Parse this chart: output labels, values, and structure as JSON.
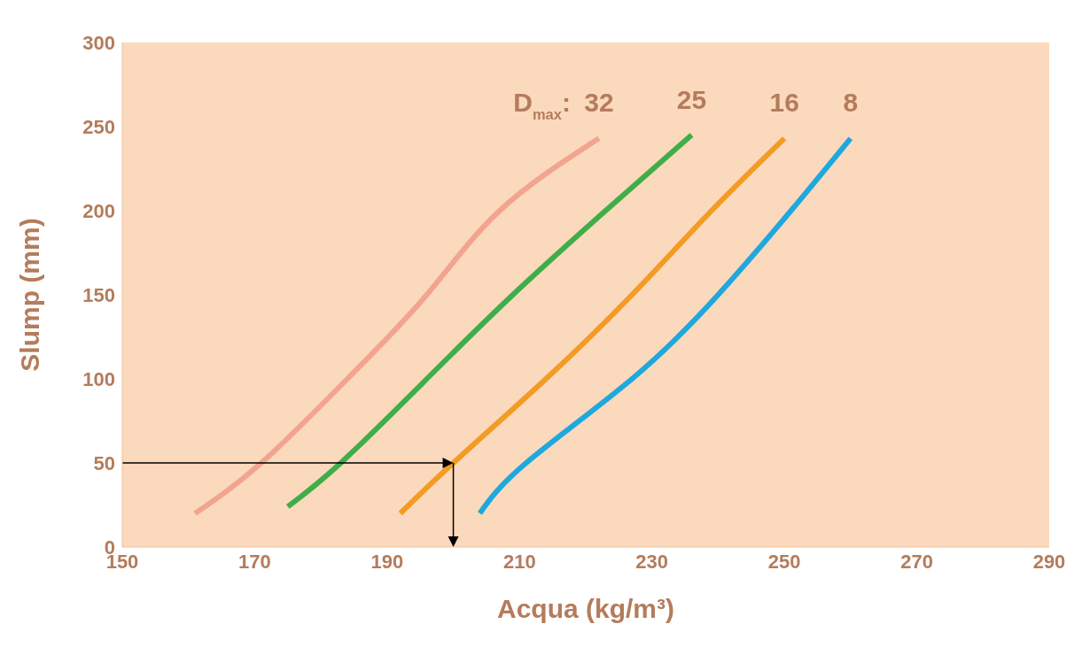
{
  "chart_data": {
    "type": "line",
    "xlabel": "Acqua (kg/m³)",
    "ylabel": "Slump (mm)",
    "xlim": [
      150,
      290
    ],
    "xticks": [
      150,
      170,
      190,
      210,
      230,
      250,
      270,
      290
    ],
    "ylim": [
      0,
      300
    ],
    "yticks": [
      0,
      50,
      100,
      150,
      200,
      250,
      300
    ],
    "grid": false,
    "legend": false,
    "marker": "none",
    "line_style": "solid",
    "annotations": [
      "D$_{max}$:"
    ],
    "ref_lines": [
      {
        "axis": "y",
        "value": 50,
        "color": "#000000"
      },
      {
        "axis": "x",
        "value": 200,
        "color": "#000000"
      }
    ],
    "series": [
      {
        "name": "32",
        "color": "#f2a48e",
        "x": [
          161,
          171,
          184,
          196,
          207,
          222
        ],
        "values": [
          20,
          50,
          100,
          150,
          200,
          243
        ]
      },
      {
        "name": "25",
        "color": "#3fae49",
        "x": [
          175,
          183,
          196,
          209,
          223,
          236
        ],
        "values": [
          24,
          50,
          100,
          150,
          200,
          245
        ]
      },
      {
        "name": "16",
        "color": "#f39b24",
        "x": [
          192,
          200,
          214,
          227,
          239,
          250
        ],
        "values": [
          20,
          50,
          100,
          150,
          200,
          243
        ]
      },
      {
        "name": "8",
        "color": "#1ea8de",
        "x": [
          204,
          211,
          227,
          240,
          251,
          260
        ],
        "values": [
          20,
          50,
          100,
          150,
          200,
          243
        ]
      }
    ]
  }
}
